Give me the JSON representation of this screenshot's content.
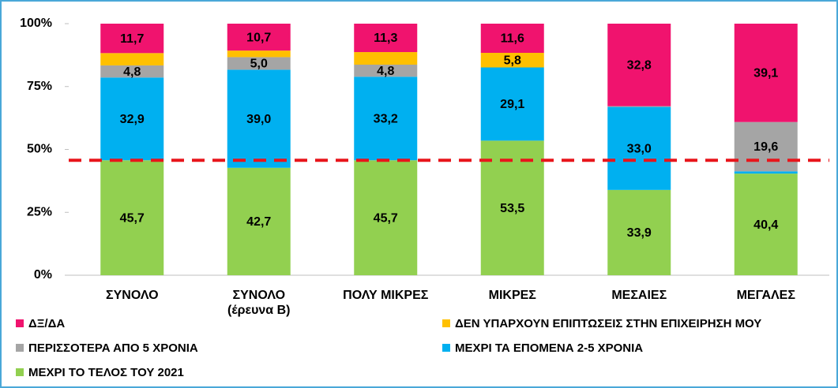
{
  "chart_data": {
    "type": "stacked_bar",
    "categories": [
      "ΣΥΝΟΛΟ",
      "ΣΥΝΟΛΟ\n(έρευνα Β)",
      "ΠΟΛΥ ΜΙΚΡΕΣ",
      "ΜΙΚΡΕΣ",
      "ΜΕΣΑΙΕΣ",
      "ΜΕΓΑΛΕΣ"
    ],
    "series": [
      {
        "name": "ΔΞ/ΔΑ",
        "color": "#f0136e",
        "values": [
          11.7,
          10.7,
          11.3,
          11.6,
          32.8,
          39.1
        ],
        "value_labels": [
          "11,7",
          "10,7",
          "11,3",
          "11,6",
          "32,8",
          "39,1"
        ]
      },
      {
        "name": "ΔΕΝ ΥΠΑΡΧΟΥΝ ΕΠΙΠΤΩΣΕΙΣ ΣΤΗΝ ΕΠΙΧΕΙΡΗΣΗ ΜΟΥ",
        "color": "#ffc000",
        "values": [
          4.9,
          2.6,
          5.0,
          5.8,
          0,
          0
        ],
        "value_labels": [
          null,
          null,
          null,
          "5,8",
          null,
          null
        ]
      },
      {
        "name": "ΠΕΡΙΣΣΟΤΕΡΑ ΑΠΟ 5 ΧΡΟΝΙΑ",
        "color": "#a5a5a5",
        "values": [
          4.8,
          5.0,
          4.8,
          0,
          0.3,
          19.6
        ],
        "value_labels": [
          "4,8",
          "5,0",
          "4,8",
          null,
          null,
          "19,6"
        ]
      },
      {
        "name": "ΜΕΧΡΙ ΤΑ ΕΠΟΜΕΝΑ 2-5 ΧΡΟΝΙΑ",
        "color": "#00b0f0",
        "values": [
          32.9,
          39.0,
          33.2,
          29.1,
          33.0,
          0.9
        ],
        "value_labels": [
          "32,9",
          "39,0",
          "33,2",
          "29,1",
          "33,0",
          null
        ]
      },
      {
        "name": "ΜΕΧΡΙ ΤΟ ΤΕΛΟΣ ΤΟΥ 2021",
        "color": "#92d050",
        "values": [
          45.7,
          42.7,
          45.7,
          53.5,
          33.9,
          40.4
        ],
        "value_labels": [
          "45,7",
          "42,7",
          "45,7",
          "53,5",
          "33,9",
          "40,4"
        ]
      }
    ],
    "ylim": [
      0,
      100
    ],
    "yticks": [
      {
        "value": 0,
        "label": "0%"
      },
      {
        "value": 25,
        "label": "25%"
      },
      {
        "value": 50,
        "label": "50%"
      },
      {
        "value": 75,
        "label": "75%"
      },
      {
        "value": 100,
        "label": "100%"
      }
    ],
    "reference_line": {
      "value": 45.7,
      "color": "#e8151b"
    },
    "grid": false
  }
}
